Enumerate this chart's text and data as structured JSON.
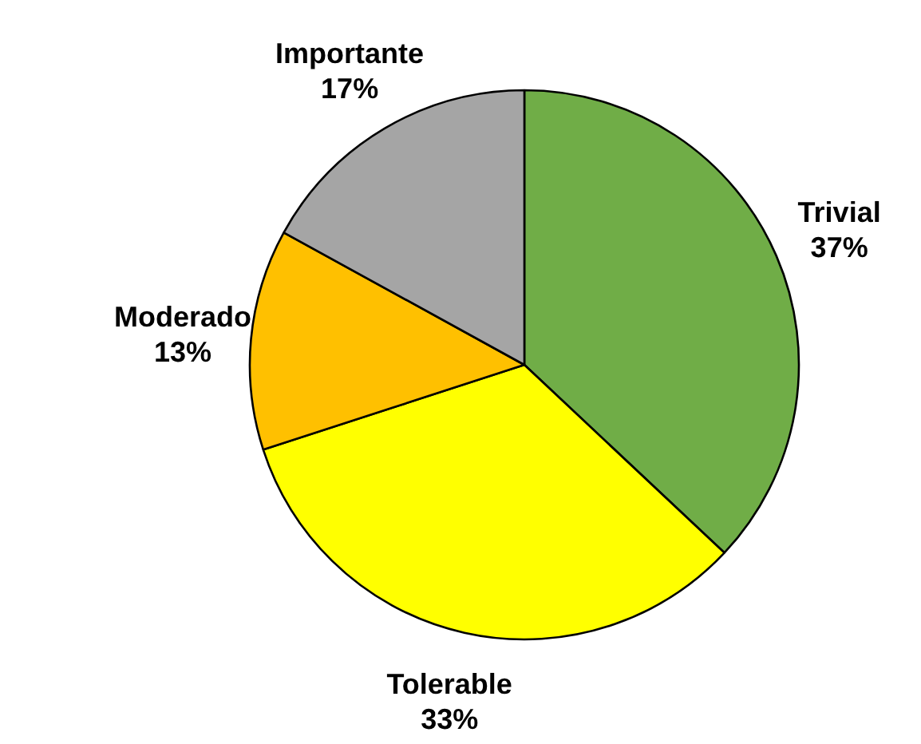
{
  "chart_data": {
    "type": "pie",
    "categories": [
      "Trivial",
      "Tolerable",
      "Moderado",
      "Importante"
    ],
    "values": [
      37,
      33,
      13,
      17
    ],
    "value_labels": [
      "37%",
      "33%",
      "13%",
      "17%"
    ],
    "colors": [
      "#70ad47",
      "#ffff00",
      "#ffc000",
      "#a5a5a5"
    ]
  }
}
